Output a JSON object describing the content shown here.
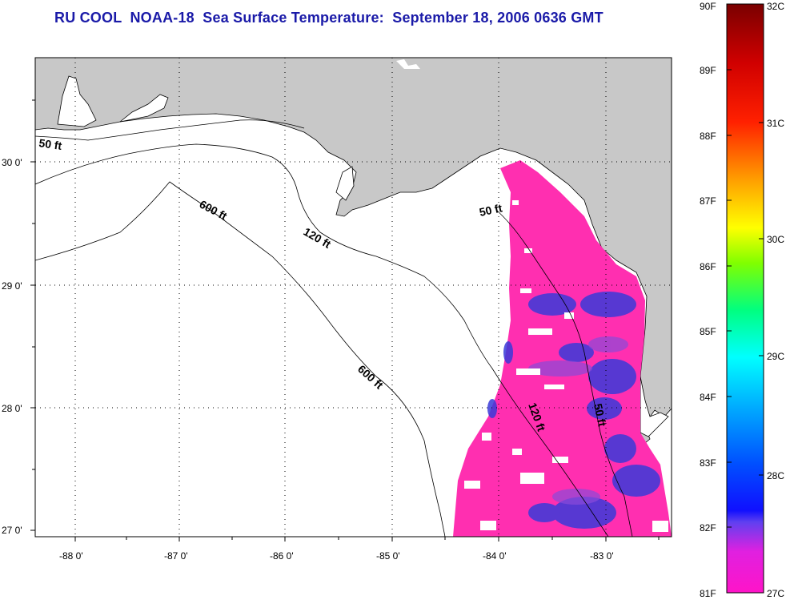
{
  "title": "RU COOL  NOAA-18  Sea Surface Temperature:  September 18, 2006 0636 GMT",
  "map": {
    "lon_labels": [
      "-88 0'",
      "-87 0'",
      "-86 0'",
      "-85 0'",
      "-84 0'",
      "-83 0'"
    ],
    "lat_labels": [
      "30 0'",
      "29 0'",
      "28 0'",
      "27 0'"
    ],
    "contour_labels": [
      "50 ft",
      "600 ft",
      "120 ft",
      "50 ft",
      "600 ft",
      "120 ft",
      "50 ft"
    ],
    "colors": {
      "land": "#c8c8c8",
      "water": "#ffffff",
      "sst_main": "#ff2fb0",
      "sst_cool": "#3a3ad8"
    }
  },
  "colorbar": {
    "f_labels": [
      "90F",
      "89F",
      "88F",
      "87F",
      "86F",
      "85F",
      "84F",
      "83F",
      "82F",
      "81F"
    ],
    "c_labels": [
      "32C",
      "31C",
      "30C",
      "29C",
      "28C",
      "27C"
    ],
    "colors": [
      "#ff14c8",
      "#8a2be2",
      "#0000ff",
      "#0080ff",
      "#00ffff",
      "#00ff80",
      "#80ff00",
      "#ffff00",
      "#ffa000",
      "#ff2000",
      "#b00000",
      "#7a0000"
    ]
  }
}
